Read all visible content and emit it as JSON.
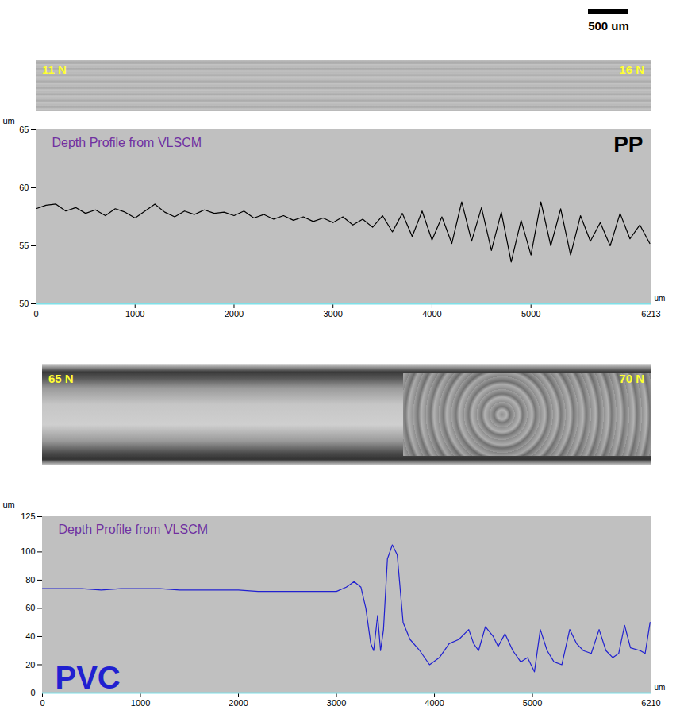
{
  "scale_bar": {
    "label": "500 um"
  },
  "images": [
    {
      "labels": [
        "11 N",
        "16 N"
      ]
    },
    {
      "labels": [
        "65 N",
        "70 N"
      ]
    }
  ],
  "chart_data": [
    {
      "type": "line",
      "title": "Depth Profile from VLSCM",
      "xlabel": "um",
      "ylabel": "um",
      "legend": "top-right",
      "x": [
        0,
        100,
        200,
        300,
        400,
        500,
        600,
        700,
        800,
        900,
        1000,
        1100,
        1200,
        1300,
        1400,
        1500,
        1600,
        1700,
        1800,
        1900,
        2000,
        2100,
        2200,
        2300,
        2400,
        2500,
        2600,
        2700,
        2800,
        2900,
        3000,
        3100,
        3200,
        3300,
        3400,
        3500,
        3600,
        3700,
        3800,
        3900,
        4000,
        4100,
        4200,
        4300,
        4400,
        4500,
        4600,
        4700,
        4800,
        4900,
        5000,
        5100,
        5200,
        5300,
        5400,
        5500,
        5600,
        5700,
        5800,
        5900,
        6000,
        6100,
        6200
      ],
      "series": [
        {
          "name": "PP",
          "color": "#000000",
          "values": [
            58.2,
            58.5,
            58.6,
            58.0,
            58.3,
            57.8,
            58.1,
            57.6,
            58.2,
            57.9,
            57.4,
            58.0,
            58.6,
            57.9,
            57.5,
            58.0,
            57.7,
            58.1,
            57.8,
            57.9,
            57.6,
            58.0,
            57.4,
            57.7,
            57.3,
            57.6,
            57.2,
            57.5,
            57.1,
            57.4,
            57.0,
            57.5,
            56.8,
            57.3,
            56.6,
            57.6,
            56.2,
            57.8,
            55.8,
            58.0,
            55.5,
            57.5,
            55.2,
            58.8,
            55.4,
            58.3,
            54.6,
            57.9,
            53.6,
            57.2,
            54.2,
            58.8,
            55.0,
            58.2,
            54.2,
            57.6,
            55.4,
            57.0,
            55.0,
            57.8,
            55.6,
            56.8,
            55.2
          ]
        }
      ],
      "xlim": [
        0,
        6213
      ],
      "xticks": [
        0,
        1000,
        2000,
        3000,
        4000,
        5000,
        6213
      ],
      "ylim": [
        50,
        65
      ],
      "yticks": [
        50,
        55,
        60,
        65
      ]
    },
    {
      "type": "line",
      "title": "Depth Profile from VLSCM",
      "xlabel": "um",
      "ylabel": "um",
      "legend": "bottom-left",
      "x": [
        0,
        200,
        400,
        600,
        800,
        1000,
        1200,
        1400,
        1600,
        1800,
        2000,
        2200,
        2400,
        2600,
        2800,
        3000,
        3100,
        3180,
        3250,
        3300,
        3350,
        3380,
        3420,
        3450,
        3480,
        3520,
        3570,
        3620,
        3680,
        3750,
        3850,
        3950,
        4050,
        4150,
        4250,
        4350,
        4400,
        4450,
        4520,
        4600,
        4650,
        4720,
        4800,
        4880,
        4950,
        5020,
        5080,
        5150,
        5220,
        5300,
        5380,
        5450,
        5520,
        5600,
        5680,
        5750,
        5820,
        5880,
        5940,
        6000,
        6100,
        6150,
        6200
      ],
      "series": [
        {
          "name": "PVC",
          "color": "#2020d0",
          "values": [
            74,
            74,
            74,
            73,
            74,
            74,
            74,
            73,
            73,
            73,
            73,
            72,
            72,
            72,
            72,
            72,
            75,
            79,
            75,
            60,
            35,
            30,
            55,
            30,
            45,
            95,
            105,
            98,
            50,
            38,
            30,
            20,
            25,
            35,
            38,
            45,
            35,
            30,
            47,
            40,
            33,
            42,
            30,
            22,
            25,
            15,
            45,
            30,
            22,
            20,
            45,
            35,
            30,
            28,
            45,
            30,
            25,
            28,
            48,
            32,
            30,
            28,
            50
          ]
        }
      ],
      "xlim": [
        0,
        6210
      ],
      "xticks": [
        0,
        1000,
        2000,
        3000,
        4000,
        5000,
        6210
      ],
      "ylim": [
        0,
        125
      ],
      "yticks": [
        0,
        20,
        40,
        60,
        80,
        100,
        125
      ]
    }
  ]
}
